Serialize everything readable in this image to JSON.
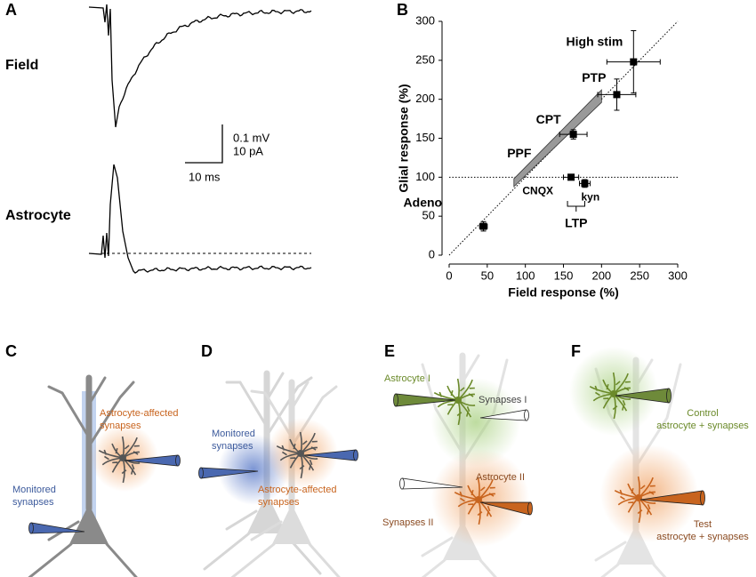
{
  "panel_a": {
    "letter": "A",
    "labels": [
      "Field",
      "Astrocyte"
    ],
    "scale": [
      "0.1 mV",
      "10 pA",
      "10 ms"
    ]
  },
  "chart_data": {
    "type": "scatter",
    "letter": "B",
    "xlabel": "Field response (%)",
    "ylabel": "Glial response (%)",
    "xlim": [
      0,
      300
    ],
    "ylim": [
      0,
      300
    ],
    "xticks": [
      0,
      50,
      100,
      150,
      200,
      250,
      300
    ],
    "yticks": [
      0,
      50,
      100,
      150,
      200,
      250,
      300
    ],
    "color": "#000000",
    "point_labels": [
      "Adeno",
      "CNQX",
      "kyn",
      "CPT",
      "PTP",
      "High stim"
    ],
    "x": [
      45,
      160,
      178,
      163,
      220,
      242
    ],
    "values": [
      37,
      100,
      92,
      155,
      206,
      248
    ],
    "xerr": [
      5,
      10,
      7,
      18,
      25,
      35
    ],
    "yerr": [
      6,
      3,
      5,
      6,
      20,
      40
    ],
    "hline": 100,
    "identity_line": true,
    "band": {
      "label": "PPF",
      "x": [
        85,
        200
      ],
      "lower": [
        88,
        196
      ],
      "upper": [
        98,
        212
      ]
    },
    "group_label": "LTP"
  },
  "panel_c": {
    "letter": "C",
    "texts": [
      [
        "Astrocyte-affected",
        "synapses"
      ],
      [
        "Monitored",
        "synapses"
      ]
    ]
  },
  "panel_d": {
    "letter": "D",
    "texts": [
      [
        "Monitored",
        "synapses"
      ],
      [
        "Astrocyte-affected",
        "synapses"
      ]
    ]
  },
  "panel_e": {
    "letter": "E",
    "texts": [
      [
        "Astrocyte I"
      ],
      [
        "Synapses I"
      ],
      [
        "Astrocyte II"
      ],
      [
        "Synapses II"
      ]
    ]
  },
  "panel_f": {
    "letter": "F",
    "texts": [
      [
        "Control",
        "astrocyte + synapses"
      ],
      [
        "Test",
        "astrocyte + synapses"
      ]
    ]
  }
}
